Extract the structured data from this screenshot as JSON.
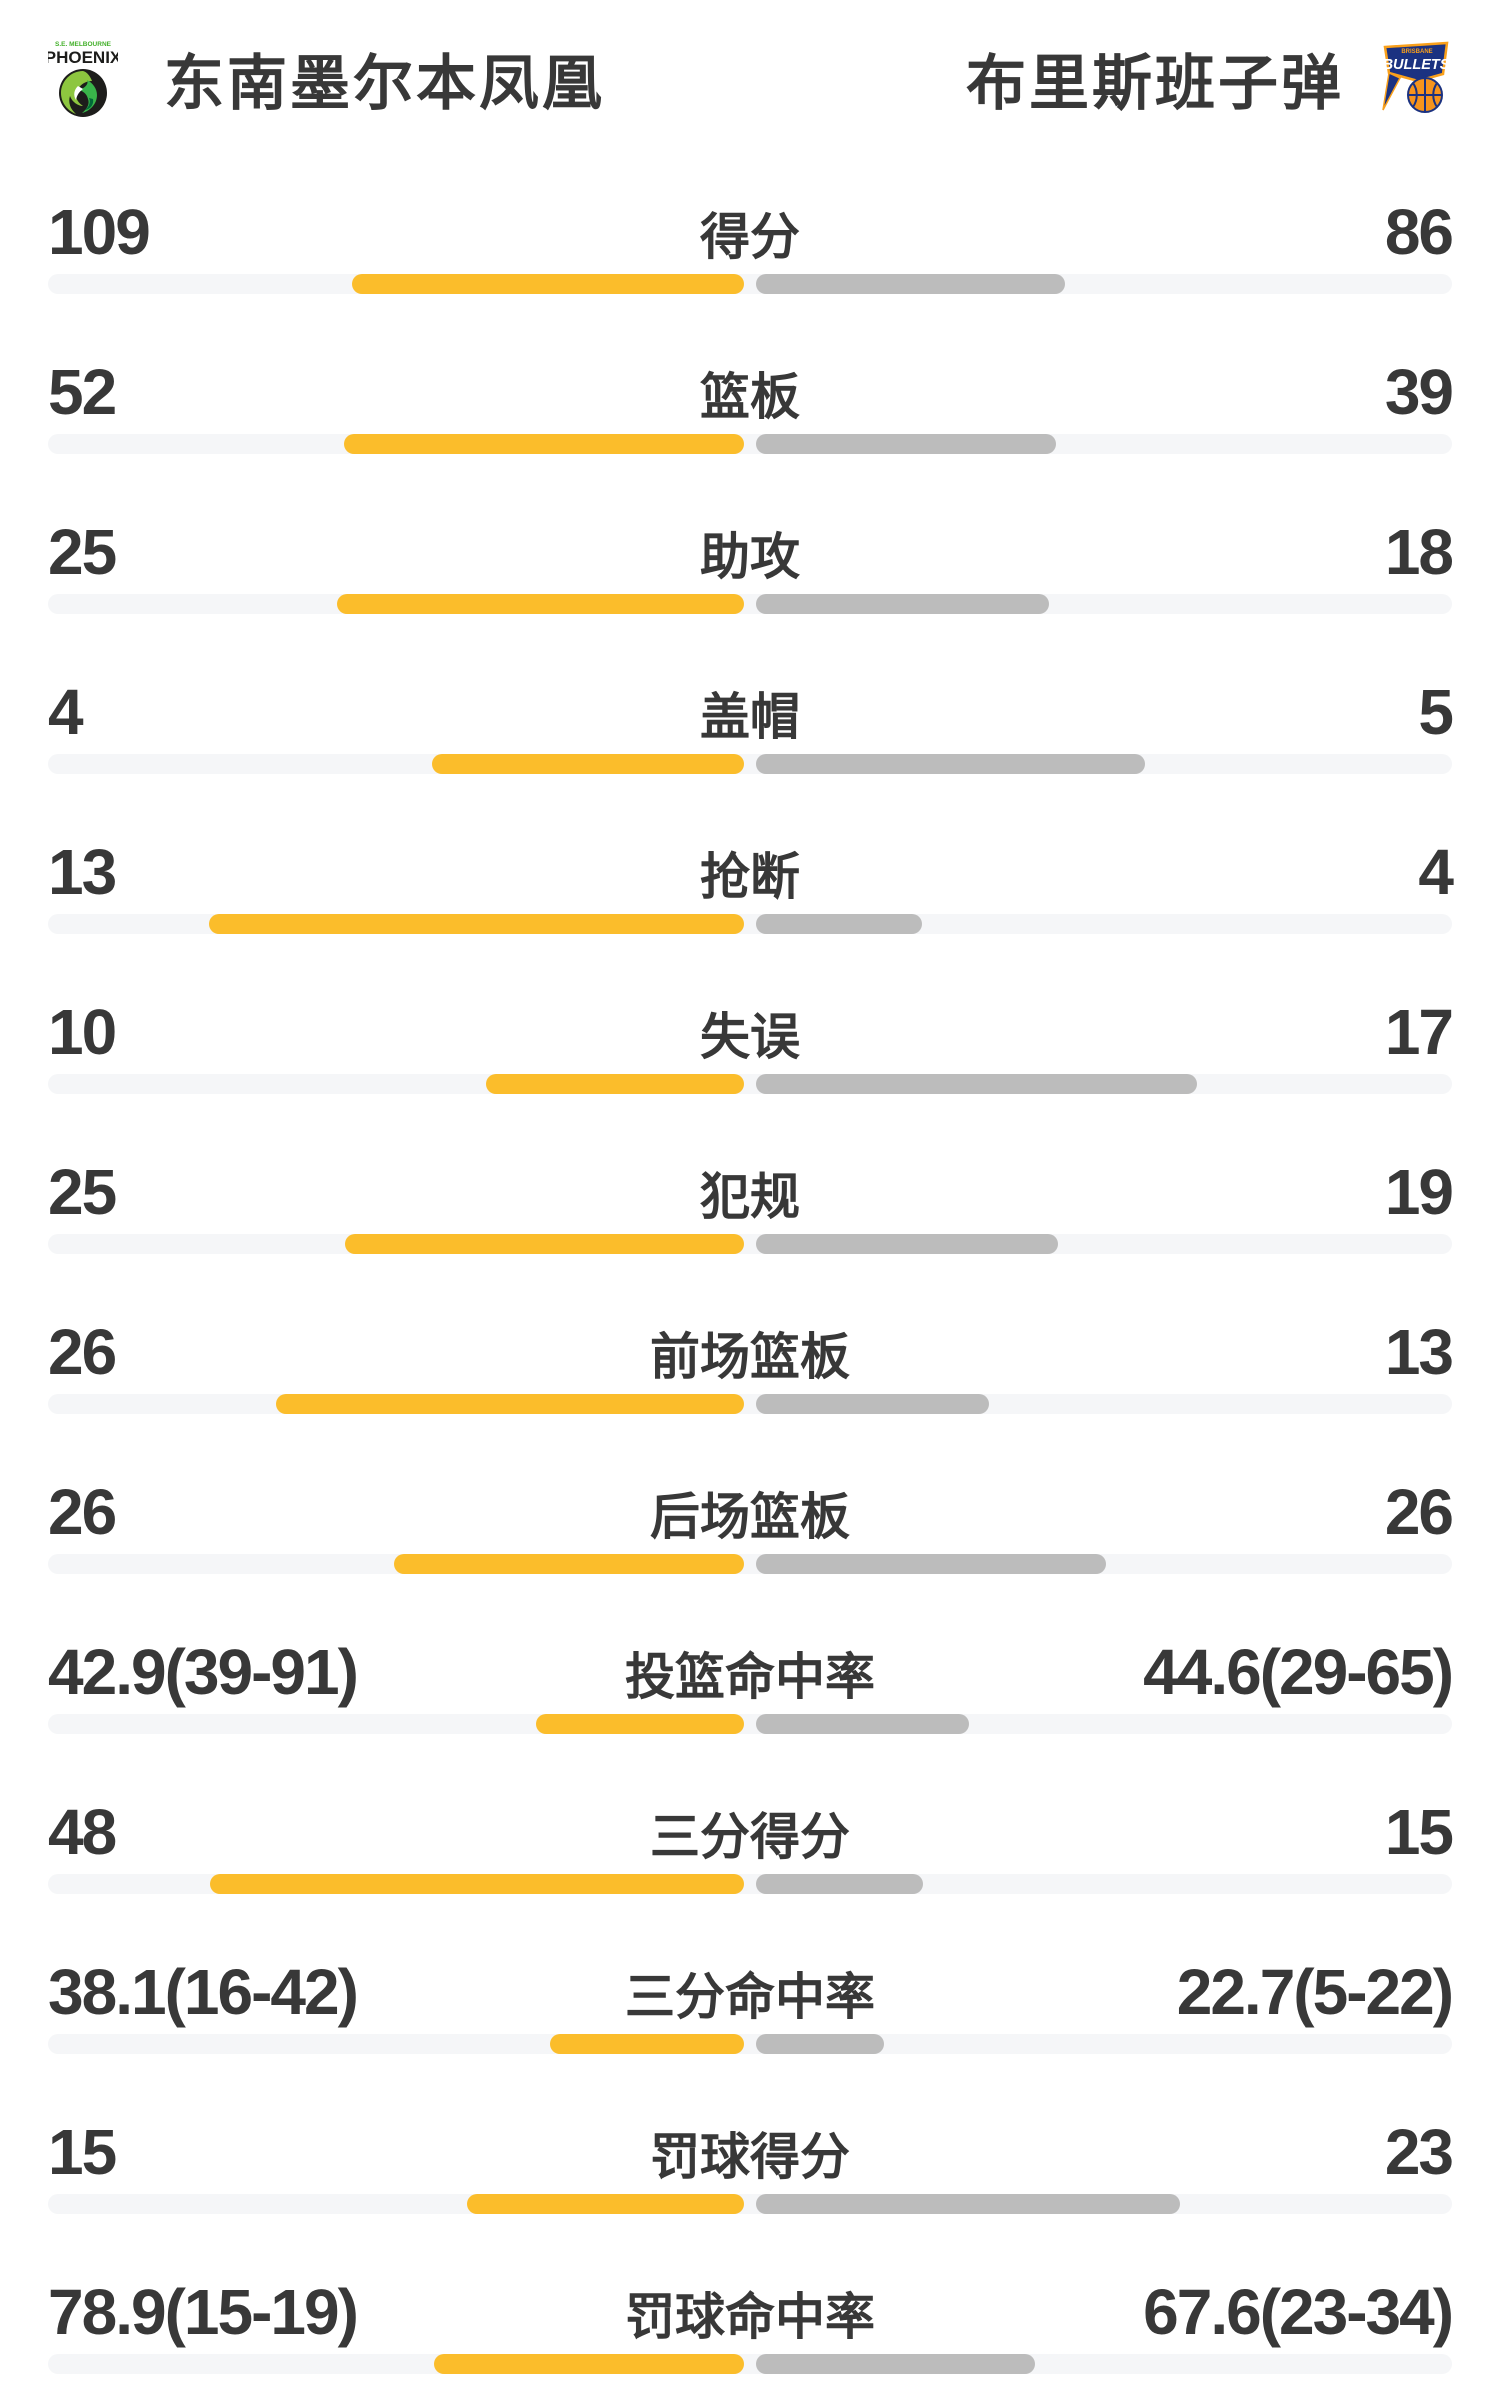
{
  "page": {
    "background": "#ffffff"
  },
  "colors": {
    "home_bar": "#FBBD2B",
    "away_bar": "#BCBCBC",
    "track": "#F5F6F8",
    "text": "#383838"
  },
  "header": {
    "home": {
      "name": "东南墨尔本凤凰",
      "logo": {
        "top_text": "S.E. MELBOURNE",
        "main_text": "PHOENIX"
      }
    },
    "away": {
      "name": "布里斯班子弹",
      "logo": {
        "top_text": "BRISBANE",
        "main_text": "BULLETS"
      }
    }
  },
  "chart_data": {
    "type": "bar",
    "subtype": "paired-horizontal-team-comparison",
    "legend_position": "header",
    "categories": [
      "得分",
      "篮板",
      "助攻",
      "盖帽",
      "抢断",
      "失误",
      "犯规",
      "前场篮板",
      "后场篮板",
      "投篮命中率",
      "三分得分",
      "三分命中率",
      "罚球得分",
      "罚球命中率"
    ],
    "series": [
      {
        "name": "东南墨尔本凤凰",
        "side": "left",
        "color": "#FBBD2B",
        "values": [
          "109",
          "52",
          "25",
          "4",
          "13",
          "10",
          "25",
          "26",
          "26",
          "42.9(39-91)",
          "48",
          "38.1(16-42)",
          "15",
          "78.9(15-19)"
        ]
      },
      {
        "name": "布里斯班子弹",
        "side": "right",
        "color": "#BCBCBC",
        "values": [
          "86",
          "39",
          "18",
          "5",
          "4",
          "17",
          "19",
          "13",
          "26",
          "44.6(29-65)",
          "15",
          "22.7(5-22)",
          "23",
          "67.6(23-34)"
        ]
      }
    ],
    "rows": [
      {
        "label": "得分",
        "home": "109",
        "away": "86",
        "home_bar_pct": 27.9,
        "away_bar_pct": 22.0
      },
      {
        "label": "篮板",
        "home": "52",
        "away": "39",
        "home_bar_pct": 28.5,
        "away_bar_pct": 21.4
      },
      {
        "label": "助攻",
        "home": "25",
        "away": "18",
        "home_bar_pct": 29.0,
        "away_bar_pct": 20.9
      },
      {
        "label": "盖帽",
        "home": "4",
        "away": "5",
        "home_bar_pct": 22.2,
        "away_bar_pct": 27.7
      },
      {
        "label": "抢断",
        "home": "13",
        "away": "4",
        "home_bar_pct": 38.1,
        "away_bar_pct": 11.8
      },
      {
        "label": "失误",
        "home": "10",
        "away": "17",
        "home_bar_pct": 18.4,
        "away_bar_pct": 31.4
      },
      {
        "label": "犯规",
        "home": "25",
        "away": "19",
        "home_bar_pct": 28.4,
        "away_bar_pct": 21.5
      },
      {
        "label": "前场篮板",
        "home": "26",
        "away": "13",
        "home_bar_pct": 33.3,
        "away_bar_pct": 16.6
      },
      {
        "label": "后场篮板",
        "home": "26",
        "away": "26",
        "home_bar_pct": 24.9,
        "away_bar_pct": 24.9
      },
      {
        "label": "投篮命中率",
        "home": "42.9(39-91)",
        "away": "44.6(29-65)",
        "home_bar_pct": 14.8,
        "away_bar_pct": 15.2
      },
      {
        "label": "三分得分",
        "home": "48",
        "away": "15",
        "home_bar_pct": 38.0,
        "away_bar_pct": 11.9
      },
      {
        "label": "三分命中率",
        "home": "38.1(16-42)",
        "away": "22.7(5-22)",
        "home_bar_pct": 13.8,
        "away_bar_pct": 9.1
      },
      {
        "label": "罚球得分",
        "home": "15",
        "away": "23",
        "home_bar_pct": 19.7,
        "away_bar_pct": 30.2
      },
      {
        "label": "罚球命中率",
        "home": "78.9(15-19)",
        "away": "67.6(23-34)",
        "home_bar_pct": 22.1,
        "away_bar_pct": 19.9
      }
    ]
  }
}
